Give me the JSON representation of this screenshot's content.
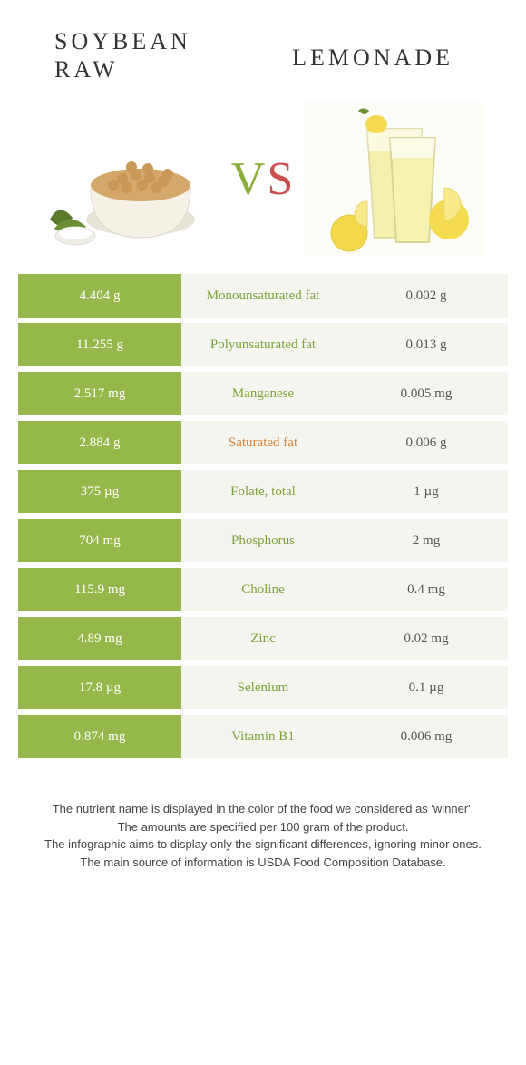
{
  "colors": {
    "green": "#96b749",
    "green_text": "#7da239",
    "orange_text": "#d6843e",
    "cell_bg": "#f5f5f0",
    "white": "#ffffff",
    "text": "#555555"
  },
  "header": {
    "left_line1": "Soybean",
    "left_line2": "raw",
    "right": "Lemonade",
    "vs_v": "V",
    "vs_s": "S"
  },
  "rows": [
    {
      "left": "4.404 g",
      "label": "Monounsaturated fat",
      "right": "0.002 g",
      "label_color": "#7da239"
    },
    {
      "left": "11.255 g",
      "label": "Polyunsaturated fat",
      "right": "0.013 g",
      "label_color": "#7da239"
    },
    {
      "left": "2.517 mg",
      "label": "Manganese",
      "right": "0.005 mg",
      "label_color": "#7da239"
    },
    {
      "left": "2.884 g",
      "label": "Saturated fat",
      "right": "0.006 g",
      "label_color": "#d6843e"
    },
    {
      "left": "375 µg",
      "label": "Folate, total",
      "right": "1 µg",
      "label_color": "#7da239"
    },
    {
      "left": "704 mg",
      "label": "Phosphorus",
      "right": "2 mg",
      "label_color": "#7da239"
    },
    {
      "left": "115.9 mg",
      "label": "Choline",
      "right": "0.4 mg",
      "label_color": "#7da239"
    },
    {
      "left": "4.89 mg",
      "label": "Zinc",
      "right": "0.02 mg",
      "label_color": "#7da239"
    },
    {
      "left": "17.8 µg",
      "label": "Selenium",
      "right": "0.1 µg",
      "label_color": "#7da239"
    },
    {
      "left": "0.874 mg",
      "label": "Vitamin B1",
      "right": "0.006 mg",
      "label_color": "#7da239"
    }
  ],
  "footer": {
    "line1": "The nutrient name is displayed in the color of the food we considered as 'winner'.",
    "line2": "The amounts are specified per 100 gram of the product.",
    "line3": "The infographic aims to display only the significant differences, ignoring minor ones.",
    "line4": "The main source of information is USDA Food Composition Database."
  }
}
